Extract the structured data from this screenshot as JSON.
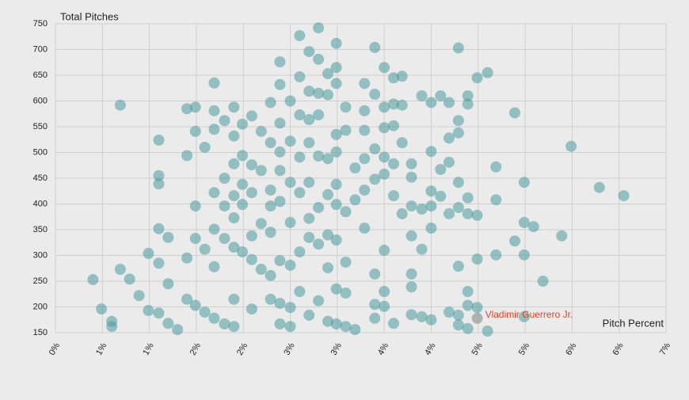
{
  "chart_data": {
    "type": "scatter",
    "y_label": "Total Pitches",
    "x_label": "Pitch Percent",
    "color": "#4a9a9c",
    "grid": true,
    "xlim": [
      0,
      0.065
    ],
    "ylim": [
      150,
      750
    ],
    "xticks": [
      {
        "value": 0,
        "label": "0%"
      },
      {
        "value": 0.005,
        "label": "1%"
      },
      {
        "value": 0.01,
        "label": "1%"
      },
      {
        "value": 0.015,
        "label": "2%"
      },
      {
        "value": 0.02,
        "label": "2%"
      },
      {
        "value": 0.025,
        "label": "3%"
      },
      {
        "value": 0.03,
        "label": "3%"
      },
      {
        "value": 0.035,
        "label": "4%"
      },
      {
        "value": 0.04,
        "label": "4%"
      },
      {
        "value": 0.045,
        "label": "5%"
      },
      {
        "value": 0.05,
        "label": "5%"
      },
      {
        "value": 0.055,
        "label": "6%"
      },
      {
        "value": 0.06,
        "label": "6%"
      },
      {
        "value": 0.065,
        "label": "7%"
      }
    ],
    "yticks": [
      150,
      200,
      250,
      300,
      350,
      400,
      450,
      500,
      550,
      600,
      650,
      700,
      750
    ],
    "annotations": [
      {
        "text": "Vladimir Guerrero Jr.",
        "x": 0.0449,
        "y": 178,
        "color": "#e8401c"
      }
    ],
    "x": [
      0.004,
      0.0049,
      0.006,
      0.006,
      0.0069,
      0.0069,
      0.0079,
      0.0089,
      0.0099,
      0.0099,
      0.011,
      0.011,
      0.011,
      0.011,
      0.011,
      0.011,
      0.012,
      0.012,
      0.012,
      0.013,
      0.014,
      0.014,
      0.014,
      0.014,
      0.0149,
      0.0149,
      0.0149,
      0.0149,
      0.0149,
      0.0159,
      0.0159,
      0.0159,
      0.0169,
      0.0169,
      0.0169,
      0.0169,
      0.0169,
      0.0169,
      0.0169,
      0.018,
      0.018,
      0.018,
      0.018,
      0.018,
      0.019,
      0.019,
      0.019,
      0.019,
      0.019,
      0.019,
      0.019,
      0.019,
      0.0199,
      0.0199,
      0.0199,
      0.0199,
      0.0199,
      0.0209,
      0.0209,
      0.0209,
      0.0209,
      0.0209,
      0.0209,
      0.0219,
      0.0219,
      0.0219,
      0.0219,
      0.0229,
      0.0229,
      0.0229,
      0.0229,
      0.0229,
      0.0229,
      0.0229,
      0.0239,
      0.0239,
      0.0239,
      0.0239,
      0.0239,
      0.0239,
      0.0239,
      0.0239,
      0.0239,
      0.025,
      0.025,
      0.025,
      0.025,
      0.025,
      0.025,
      0.025,
      0.026,
      0.026,
      0.026,
      0.026,
      0.026,
      0.026,
      0.026,
      0.027,
      0.027,
      0.027,
      0.027,
      0.027,
      0.027,
      0.027,
      0.027,
      0.028,
      0.028,
      0.028,
      0.028,
      0.028,
      0.028,
      0.028,
      0.028,
      0.029,
      0.029,
      0.029,
      0.029,
      0.029,
      0.029,
      0.029,
      0.0299,
      0.0299,
      0.0299,
      0.0299,
      0.0299,
      0.0299,
      0.0299,
      0.0299,
      0.0299,
      0.0299,
      0.0309,
      0.0309,
      0.0309,
      0.0309,
      0.0309,
      0.0309,
      0.0319,
      0.0319,
      0.0319,
      0.0329,
      0.0329,
      0.0329,
      0.0329,
      0.0329,
      0.0329,
      0.034,
      0.034,
      0.034,
      0.034,
      0.034,
      0.034,
      0.034,
      0.035,
      0.035,
      0.035,
      0.035,
      0.035,
      0.035,
      0.035,
      0.035,
      0.036,
      0.036,
      0.036,
      0.036,
      0.036,
      0.036,
      0.0369,
      0.0369,
      0.0369,
      0.0369,
      0.0379,
      0.0379,
      0.0379,
      0.0379,
      0.0379,
      0.0379,
      0.0379,
      0.039,
      0.039,
      0.039,
      0.039,
      0.04,
      0.04,
      0.04,
      0.04,
      0.04,
      0.04,
      0.041,
      0.041,
      0.041,
      0.0419,
      0.0419,
      0.0419,
      0.0419,
      0.0419,
      0.0429,
      0.0429,
      0.0429,
      0.0429,
      0.0429,
      0.0429,
      0.0429,
      0.0429,
      0.0439,
      0.0439,
      0.0439,
      0.0439,
      0.0439,
      0.0439,
      0.0439,
      0.0449,
      0.0449,
      0.0449,
      0.0449,
      0.046,
      0.046,
      0.0469,
      0.0469,
      0.0469,
      0.0489,
      0.0489,
      0.0499,
      0.0499,
      0.0499,
      0.0499,
      0.0509,
      0.0519,
      0.0539,
      0.0549,
      0.0579,
      0.0605
    ],
    "values": [
      253,
      196,
      172,
      162,
      592,
      273,
      254,
      222,
      304,
      193,
      524,
      455,
      439,
      352,
      285,
      188,
      335,
      245,
      168,
      156,
      585,
      494,
      295,
      215,
      588,
      541,
      396,
      333,
      203,
      510,
      312,
      190,
      635,
      581,
      545,
      422,
      351,
      278,
      178,
      562,
      450,
      396,
      333,
      167,
      588,
      532,
      478,
      416,
      373,
      316,
      215,
      162,
      555,
      494,
      438,
      399,
      307,
      571,
      476,
      422,
      338,
      292,
      196,
      541,
      465,
      362,
      273,
      597,
      519,
      427,
      396,
      345,
      261,
      215,
      676,
      632,
      557,
      501,
      465,
      405,
      290,
      207,
      167,
      600,
      522,
      442,
      364,
      281,
      199,
      162,
      727,
      647,
      573,
      491,
      422,
      307,
      230,
      696,
      619,
      564,
      519,
      442,
      372,
      335,
      184,
      742,
      681,
      615,
      573,
      493,
      393,
      322,
      212,
      653,
      612,
      488,
      418,
      340,
      276,
      172,
      712,
      665,
      634,
      535,
      501,
      438,
      399,
      330,
      235,
      167,
      588,
      543,
      385,
      287,
      227,
      162,
      470,
      408,
      156,
      634,
      581,
      543,
      488,
      427,
      353,
      704,
      613,
      507,
      448,
      264,
      205,
      178,
      665,
      588,
      548,
      491,
      458,
      310,
      230,
      201,
      645,
      594,
      552,
      478,
      416,
      168,
      648,
      592,
      519,
      381,
      478,
      452,
      396,
      338,
      264,
      239,
      185,
      610,
      390,
      312,
      181,
      597,
      502,
      425,
      396,
      353,
      175,
      610,
      467,
      415,
      597,
      528,
      481,
      381,
      190,
      703,
      562,
      538,
      442,
      393,
      279,
      184,
      165,
      610,
      594,
      412,
      381,
      230,
      203,
      158,
      645,
      378,
      293,
      199,
      655,
      153,
      472,
      408,
      301,
      577,
      328,
      442,
      364,
      301,
      181,
      356,
      250,
      338,
      512,
      432,
      416
    ]
  }
}
